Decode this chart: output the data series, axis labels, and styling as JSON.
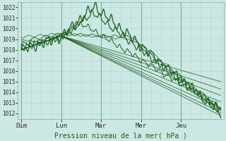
{
  "xlabel": "Pression niveau de la mer( hPa )",
  "ylim": [
    1011.5,
    1022.5
  ],
  "yticks": [
    1012,
    1013,
    1014,
    1015,
    1016,
    1017,
    1018,
    1019,
    1020,
    1021,
    1022
  ],
  "day_labels": [
    "Dim",
    "Lun",
    "Mar",
    "Mer",
    "Jeu"
  ],
  "day_positions": [
    0,
    24,
    48,
    72,
    96
  ],
  "total_hours": 120,
  "background_color": "#cce8e4",
  "grid_color_major": "#b0d8d0",
  "grid_color_minor": "#c0e0dc",
  "line_color": "#1a5c1a",
  "figsize": [
    3.2,
    2.0
  ],
  "dpi": 100
}
